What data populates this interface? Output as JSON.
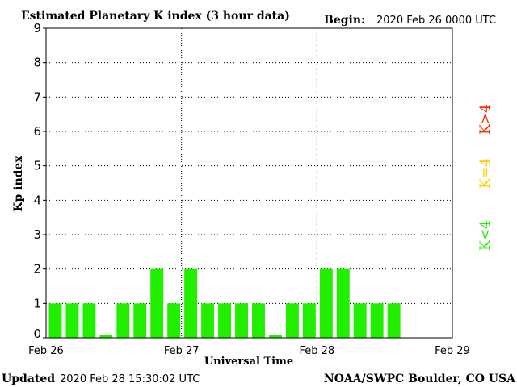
{
  "header": {
    "title": "Estimated Planetary K index (3 hour data)",
    "begin_label": "Begin:",
    "begin_value": "2020 Feb 26 0000 UTC"
  },
  "footer": {
    "updated_label": "Updated",
    "updated_value": "2020 Feb 28 15:30:02 UTC",
    "source": "NOAA/SWPC Boulder, CO USA"
  },
  "legend": [
    {
      "label": "K>4",
      "color": "#ff2a00"
    },
    {
      "label": "K=4",
      "color": "#ffd000"
    },
    {
      "label": "K<4",
      "color": "#22ee00"
    }
  ],
  "chart_data": {
    "type": "bar",
    "title": "Estimated Planetary K index (3 hour data)",
    "xlabel": "Universal Time",
    "ylabel": "Kp index",
    "ylim": [
      0,
      9
    ],
    "yticks": [
      "0",
      "1",
      "2",
      "3",
      "4",
      "5",
      "6",
      "7",
      "8",
      "9"
    ],
    "xticks": [
      "Feb 26",
      "Feb 27",
      "Feb 28",
      "Feb 29"
    ],
    "bar_color": "#22ee00",
    "grid": true,
    "values": [
      1,
      1,
      1,
      0,
      1,
      1,
      2,
      1,
      2,
      1,
      1,
      1,
      1,
      0,
      1,
      1,
      2,
      2,
      1,
      1,
      1
    ]
  }
}
